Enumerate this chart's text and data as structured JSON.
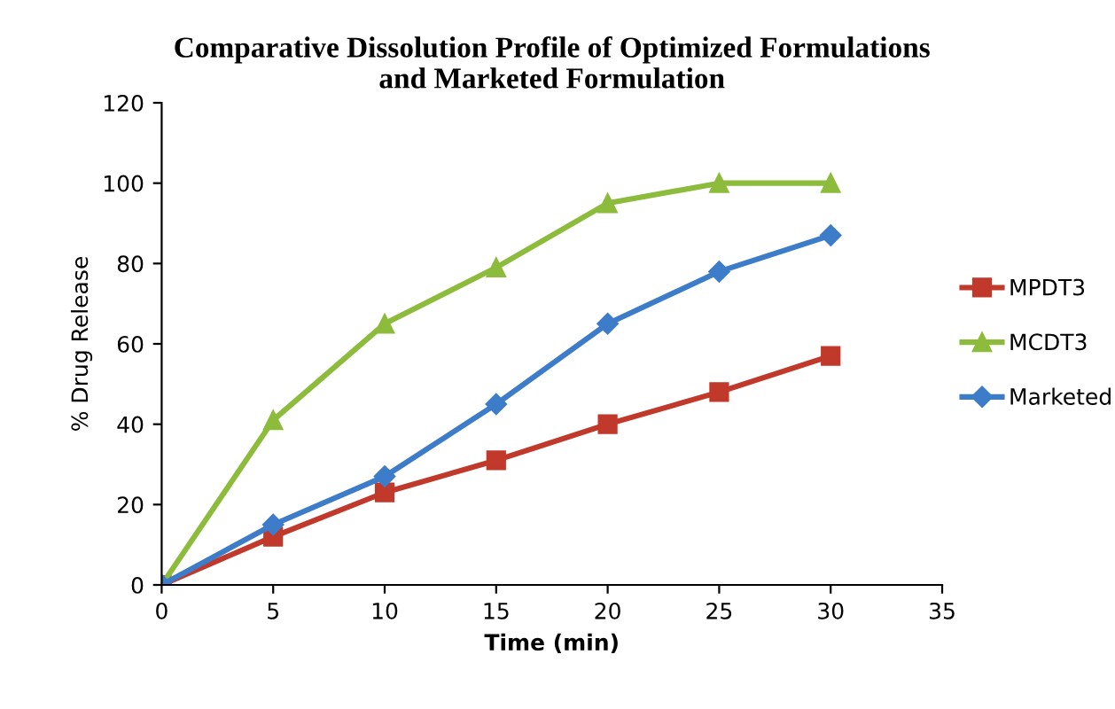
{
  "chart_data": {
    "type": "line",
    "title": "Comparative Dissolution Profile of Optimized Formulations\nand Marketed Formulation",
    "xlabel": "Time (min)",
    "ylabel": "% Drug Release",
    "x": [
      0,
      5,
      10,
      15,
      20,
      25,
      30
    ],
    "series": [
      {
        "name": "MPDT3",
        "color": "#c0392b",
        "marker": "square",
        "values": [
          0,
          12,
          23,
          31,
          40,
          48,
          57
        ]
      },
      {
        "name": "MCDT3",
        "color": "#8dbb3c",
        "marker": "triangle",
        "values": [
          0,
          41,
          65,
          79,
          95,
          100,
          100
        ]
      },
      {
        "name": "Marketed",
        "color": "#3d7cc9",
        "marker": "diamond",
        "values": [
          0,
          15,
          27,
          45,
          65,
          78,
          87
        ]
      }
    ],
    "xlim": [
      0,
      35
    ],
    "xticks": [
      0,
      5,
      10,
      15,
      20,
      25,
      30,
      35
    ],
    "ylim": [
      0,
      120
    ],
    "yticks": [
      0,
      20,
      40,
      60,
      80,
      100,
      120
    ],
    "grid": false,
    "legend": "right",
    "line_style": "solid"
  }
}
